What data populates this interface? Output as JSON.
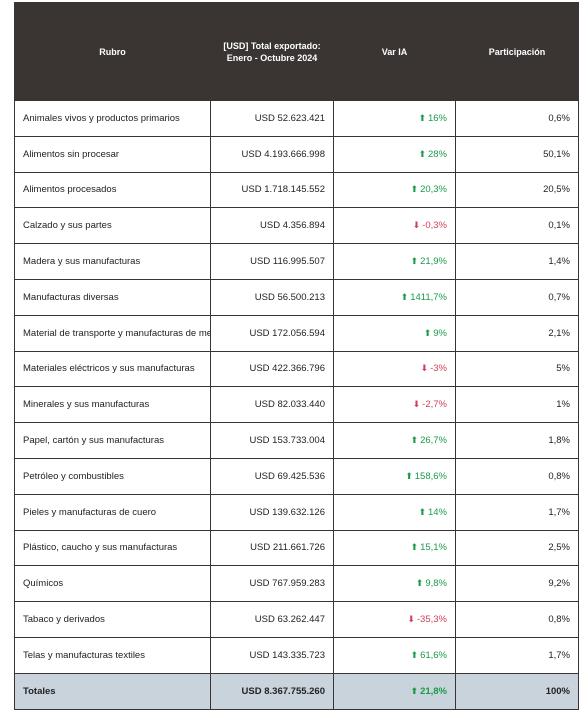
{
  "table": {
    "header": [
      [
        "Rubro"
      ],
      [
        "[USD] Total exportado:",
        "Enero  - Octubre 2024"
      ],
      [
        "Var IA"
      ],
      [
        "Participación"
      ]
    ],
    "rows": [
      [
        "Animales vivos y productos primarios",
        "USD 52.623.421",
        "16%",
        "0,6%"
      ],
      [
        "Alimentos sin procesar",
        "USD 4.193.666.998",
        "28%",
        "50,1%"
      ],
      [
        "Alimentos procesados",
        "USD 1.718.145.552",
        "20,3%",
        "20,5%"
      ],
      [
        "Calzado y sus partes",
        "USD 4.356.894",
        "-0,3%",
        "0,1%"
      ],
      [
        "Madera y sus manufacturas",
        "USD 116.995.507",
        "21,9%",
        "1,4%"
      ],
      [
        "Manufacturas diversas",
        "USD 56.500.213",
        "1411,7%",
        "0,7%"
      ],
      [
        "Material de transporte y manufacturas de metal",
        "USD 172.056.594",
        "9%",
        "2,1%"
      ],
      [
        "Materiales eléctricos y sus manufacturas",
        "USD 422.366.796",
        "-3%",
        "5%"
      ],
      [
        "Minerales y sus manufacturas",
        "USD 82.033.440",
        "-2,7%",
        "1%"
      ],
      [
        "Papel, cartón y sus manufacturas",
        "USD 153.733.004",
        "26,7%",
        "1,8%"
      ],
      [
        "Petróleo y combustibles",
        "USD 69.425.536",
        "158,6%",
        "0,8%"
      ],
      [
        "Pieles y manufacturas de cuero",
        "USD 139.632.126",
        "14%",
        "1,7%"
      ],
      [
        "Plástico, caucho y sus manufacturas",
        "USD 211.661.726",
        "15,1%",
        "2,5%"
      ],
      [
        "Químicos",
        "USD 767.959.283",
        "9,8%",
        "9,2%"
      ],
      [
        "Tabaco y derivados",
        "USD 63.262.447",
        "-35,3%",
        "0,8%"
      ],
      [
        "Telas y manufacturas textiles",
        "USD 143.335.723",
        "61,6%",
        "1,7%"
      ]
    ],
    "total": [
      "Totales",
      "USD 8.367.755.260",
      "21,8%",
      "100%"
    ]
  }
}
